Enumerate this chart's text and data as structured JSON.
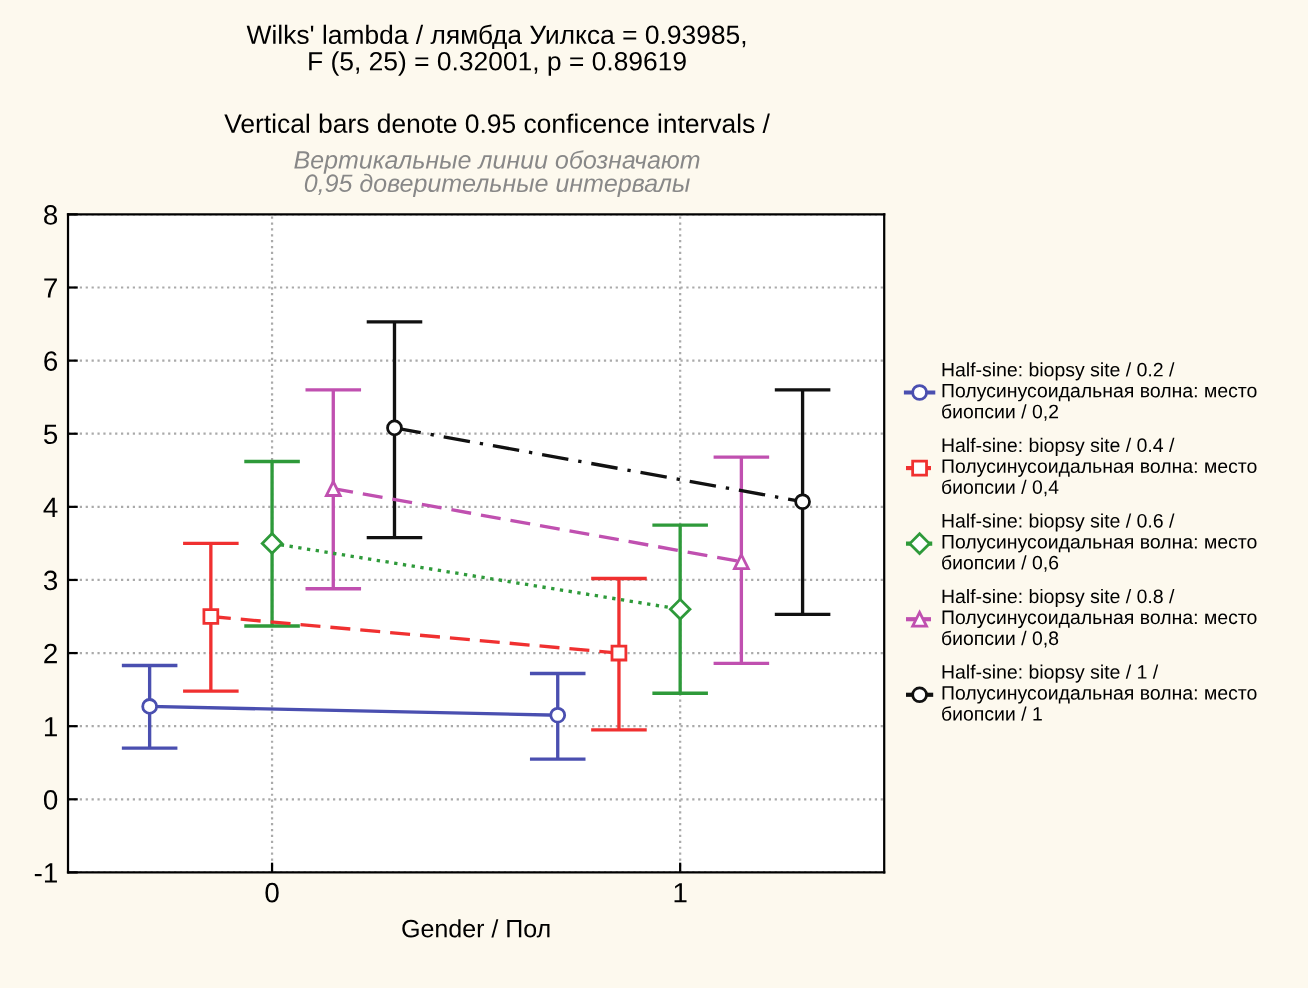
{
  "chart_data": {
    "type": "line",
    "title": "Wilks' lambda / лямбда Уилкса = 0.93985,\nF (5, 25) = 0.32001, p = 0.89619",
    "subtitle": "Vertical bars denote 0.95 conficence intervals /\nВертикальные линии обозначают\n0,95 доверительные интервалы",
    "xlabel": "Gender / Пол",
    "xlim": [
      -0.5,
      1.5
    ],
    "xticks": [
      0,
      1
    ],
    "ylim": [
      -1,
      8
    ],
    "yticks": [
      -1,
      0,
      1,
      2,
      3,
      4,
      5,
      6,
      7,
      8
    ],
    "grid": true,
    "legend": "right",
    "series": [
      {
        "name": "Half-sine: biopsy site / 0.2 /\nПолусинусоидальная волна: место\nбиопсии / 0,2",
        "color": "#4a4fb0",
        "x": [
          -0.3,
          0.7
        ],
        "values": [
          1.27,
          1.15
        ],
        "errors": [
          [
            0.7,
            1.83
          ],
          [
            0.55,
            1.72
          ]
        ],
        "marker": "circle",
        "line_style": "solid"
      },
      {
        "name": "Half-sine: biopsy site / 0.4 /\nПолусинусоидальная волна: место\nбиопсии / 0,4",
        "color": "#f03030",
        "x": [
          -0.15,
          0.85
        ],
        "values": [
          2.5,
          2.0
        ],
        "errors": [
          [
            1.48,
            3.5
          ],
          [
            0.95,
            3.02
          ]
        ],
        "marker": "square",
        "line_style": "dashed"
      },
      {
        "name": "Half-sine: biopsy site / 0.6 /\nПолусинусоидальная волна: место\nбиопсии / 0,6",
        "color": "#2e9a3a",
        "x": [
          0,
          1
        ],
        "values": [
          3.5,
          2.6
        ],
        "errors": [
          [
            2.37,
            4.62
          ],
          [
            1.45,
            3.75
          ]
        ],
        "marker": "diamond",
        "line_style": "dotted"
      },
      {
        "name": "Half-sine: biopsy site / 0.8 /\nПолусинусоидальная волна: место\nбиопсии / 0,8",
        "color": "#c050b0",
        "x": [
          0.15,
          1.15
        ],
        "values": [
          4.25,
          3.25
        ],
        "errors": [
          [
            2.88,
            5.6
          ],
          [
            1.86,
            4.68
          ]
        ],
        "marker": "triangle",
        "line_style": "dashed"
      },
      {
        "name": "Half-sine: biopsy site / 1 /\nПолусинусоидальная волна: место\nбиопсии / 1",
        "color": "#111111",
        "x": [
          0.3,
          1.3
        ],
        "values": [
          5.08,
          4.07
        ],
        "errors": [
          [
            3.58,
            6.53
          ],
          [
            2.53,
            5.6
          ]
        ],
        "marker": "circle",
        "line_style": "dashdot"
      }
    ]
  }
}
